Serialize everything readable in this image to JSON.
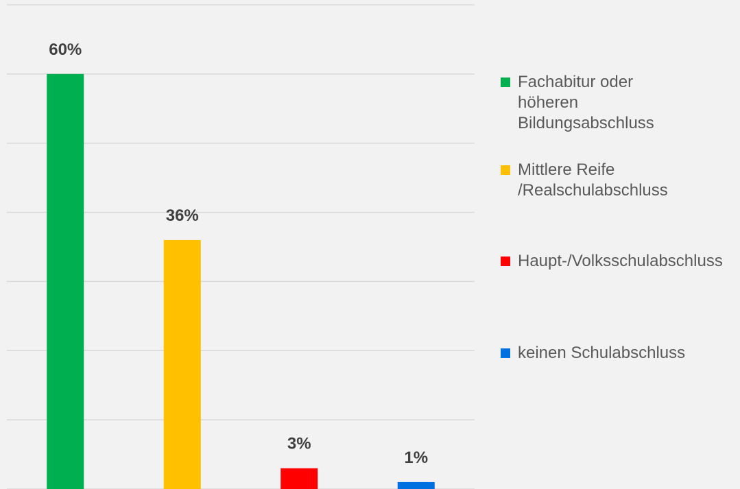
{
  "chart_data": {
    "type": "bar",
    "categories": [
      "Fachabitur oder höheren Bildungsabschluss",
      "Mittlere Reife /Realschulabschluss",
      "Haupt-/Volksschulabschluss",
      "keinen Schulabschluss"
    ],
    "values": [
      60,
      36,
      3,
      1
    ],
    "value_labels": [
      "60%",
      "36%",
      "3%",
      "1%"
    ],
    "colors": [
      "#00b050",
      "#ffc000",
      "#ff0000",
      "#0070e0"
    ],
    "ylim": [
      0,
      70
    ],
    "yticks": [
      0,
      10,
      20,
      30,
      40,
      50,
      60,
      70
    ],
    "grid": true,
    "legend": "right"
  }
}
